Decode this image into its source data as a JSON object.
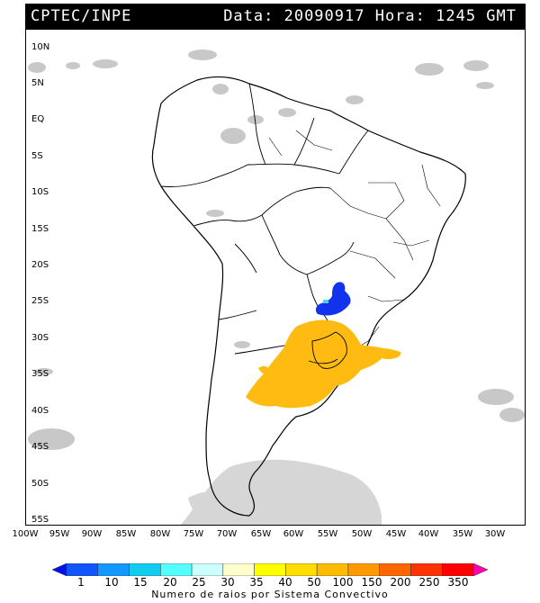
{
  "header": {
    "org": "CPTEC/INPE",
    "stamp": "Data: 20090917 Hora: 1245 GMT"
  },
  "axes": {
    "lat_labels": [
      "10N",
      "5N",
      "EQ",
      "5S",
      "10S",
      "15S",
      "20S",
      "25S",
      "30S",
      "35S",
      "40S",
      "45S",
      "50S",
      "55S"
    ],
    "lon_labels": [
      "100W",
      "95W",
      "90W",
      "85W",
      "80W",
      "75W",
      "70W",
      "65W",
      "60W",
      "55W",
      "50W",
      "45W",
      "40W",
      "35W",
      "30W"
    ]
  },
  "colorbar": {
    "title": "Numero de raios por Sistema Convectivo",
    "ticks": [
      "1",
      "10",
      "15",
      "20",
      "25",
      "30",
      "35",
      "40",
      "50",
      "100",
      "150",
      "200",
      "250",
      "350"
    ],
    "colors": [
      "#0011ee",
      "#1155ff",
      "#1199ff",
      "#11ccee",
      "#55ffff",
      "#ccffff",
      "#ffffcc",
      "#ffff00",
      "#ffdd00",
      "#ffbb00",
      "#ff9900",
      "#ff6600",
      "#ff3300",
      "#ff0000",
      "#ff00aa"
    ]
  },
  "systems": [
    {
      "name": "convective-system-blue",
      "color": "#1133ee"
    },
    {
      "name": "convective-system-orange",
      "color": "#ffbb11"
    }
  ]
}
